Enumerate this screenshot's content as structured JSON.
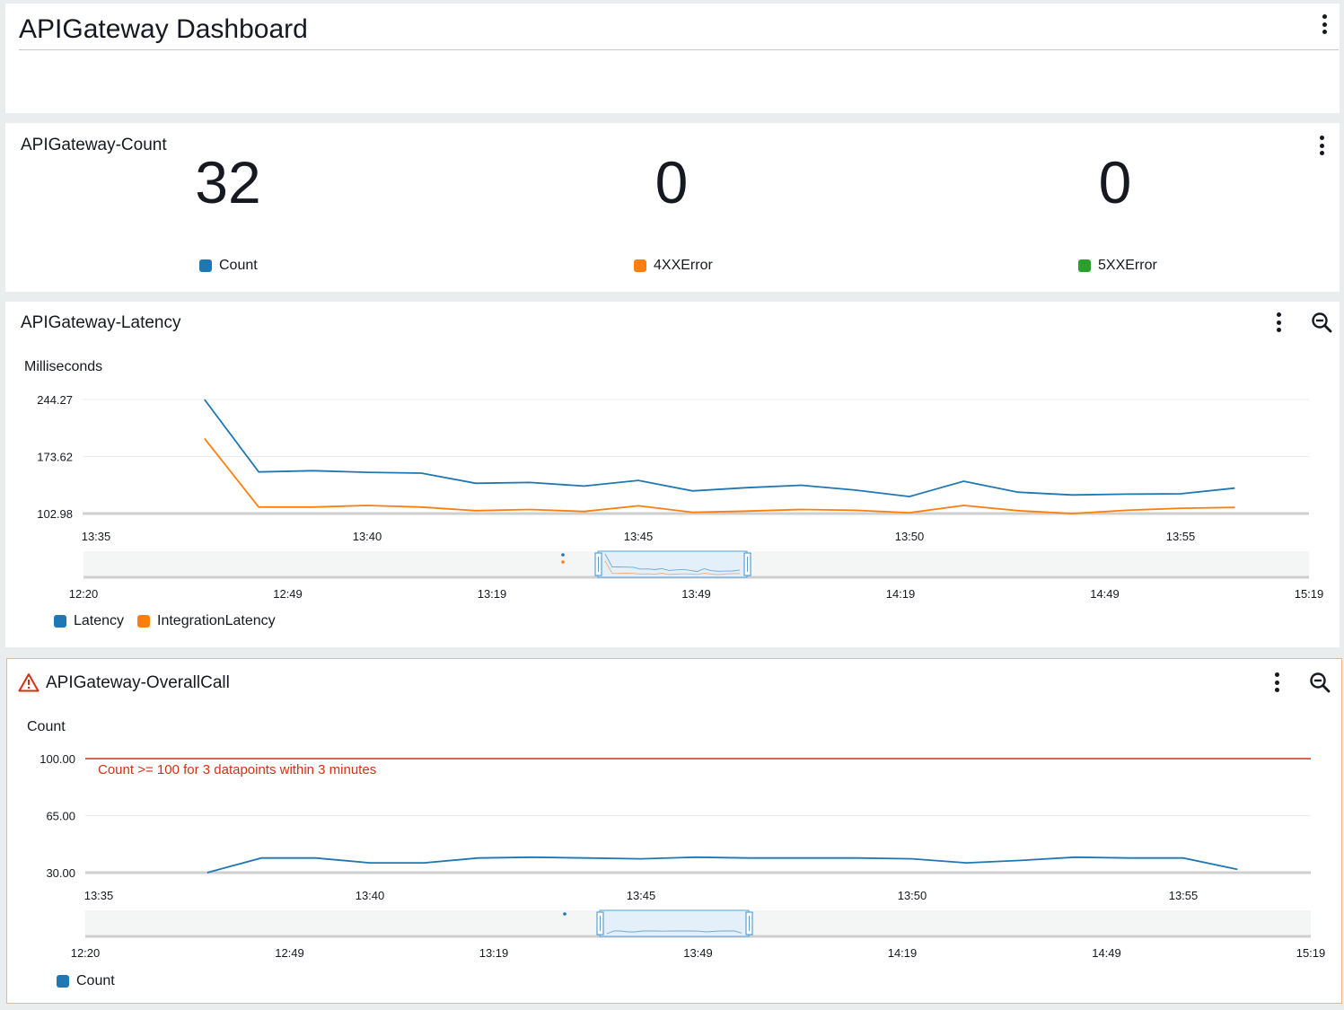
{
  "dashboard": {
    "title": "APIGateway Dashboard"
  },
  "count_widget": {
    "title": "APIGateway-Count",
    "metrics": [
      {
        "value": "32",
        "label": "Count",
        "color": "#1f77b4"
      },
      {
        "value": "0",
        "label": "4XXError",
        "color": "#ff7f0e"
      },
      {
        "value": "0",
        "label": "5XXError",
        "color": "#2ca02c"
      }
    ]
  },
  "latency_widget": {
    "title": "APIGateway-Latency",
    "unit": "Milliseconds",
    "icons": [
      "more-options-icon",
      "zoom-out-icon"
    ]
  },
  "overall_widget": {
    "title": "APIGateway-OverallCall",
    "unit": "Count",
    "alarm_color": "#d13212",
    "icons": [
      "warning-icon",
      "more-options-icon",
      "zoom-out-icon"
    ]
  },
  "chart_data": [
    {
      "type": "line",
      "title": "APIGateway-Latency",
      "ylabel": "Milliseconds",
      "y_ticks": [
        "244.27",
        "173.62",
        "102.98"
      ],
      "ylim": [
        102.98,
        244.27
      ],
      "x_ticks": [
        "13:35",
        "13:40",
        "13:45",
        "13:50",
        "13:55"
      ],
      "x": [
        "13:37",
        "13:38",
        "13:39",
        "13:40",
        "13:41",
        "13:42",
        "13:43",
        "13:44",
        "13:45",
        "13:46",
        "13:47",
        "13:48",
        "13:49",
        "13:50",
        "13:51",
        "13:52",
        "13:53",
        "13:54",
        "13:55",
        "13:56"
      ],
      "series": [
        {
          "name": "Latency",
          "color": "#1f77b4",
          "values": [
            244.27,
            154.5,
            156.0,
            154.0,
            153.0,
            140.5,
            141.5,
            137.0,
            144.0,
            131.0,
            135.0,
            138.0,
            132.0,
            124.0,
            143.0,
            129.5,
            126.0,
            127.0,
            127.5,
            134.5
          ]
        },
        {
          "name": "IntegrationLatency",
          "color": "#ff7f0e",
          "values": [
            196.0,
            111.0,
            111.0,
            113.0,
            111.0,
            106.5,
            108.0,
            105.5,
            112.5,
            104.5,
            106.0,
            108.0,
            107.0,
            104.0,
            113.0,
            106.5,
            102.98,
            107.0,
            109.5,
            110.5
          ]
        }
      ],
      "navigator_ticks": [
        "12:20",
        "12:49",
        "13:19",
        "13:49",
        "14:19",
        "14:49",
        "15:19"
      ],
      "legend": [
        "Latency",
        "IntegrationLatency"
      ],
      "legend_placement": "bottom-left"
    },
    {
      "type": "line",
      "title": "APIGateway-OverallCall",
      "ylabel": "Count",
      "y_ticks": [
        "100.00",
        "65.00",
        "30.00"
      ],
      "ylim": [
        30,
        100
      ],
      "x_ticks": [
        "13:35",
        "13:40",
        "13:45",
        "13:50",
        "13:55"
      ],
      "x": [
        "13:37",
        "13:38",
        "13:39",
        "13:40",
        "13:41",
        "13:42",
        "13:43",
        "13:44",
        "13:45",
        "13:46",
        "13:47",
        "13:48",
        "13:49",
        "13:50",
        "13:51",
        "13:52",
        "13:53",
        "13:54",
        "13:55",
        "13:56"
      ],
      "series": [
        {
          "name": "Count",
          "color": "#1f77b4",
          "values": [
            30,
            39,
            39,
            36,
            36,
            39,
            39.5,
            39,
            38.5,
            39.5,
            39,
            39,
            39,
            38.5,
            36,
            37.5,
            39.5,
            39,
            39,
            32
          ]
        }
      ],
      "threshold": {
        "value": 100,
        "label": "Count >= 100 for 3 datapoints within 3 minutes",
        "color": "#d13212"
      },
      "navigator_ticks": [
        "12:20",
        "12:49",
        "13:19",
        "13:49",
        "14:19",
        "14:49",
        "15:19"
      ],
      "legend": [
        "Count"
      ],
      "legend_placement": "bottom-left"
    }
  ]
}
